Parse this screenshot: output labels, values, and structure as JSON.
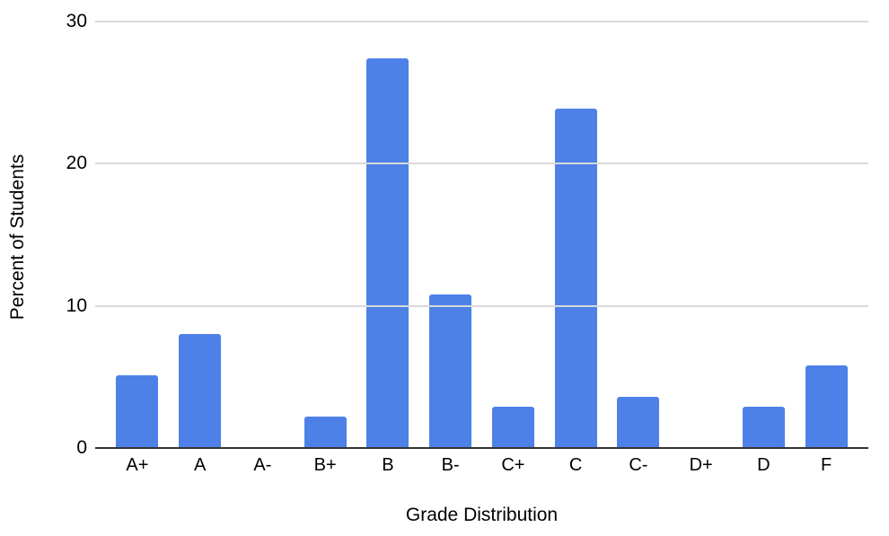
{
  "chart_data": {
    "type": "bar",
    "categories": [
      "A+",
      "A",
      "A-",
      "B+",
      "B",
      "B-",
      "C+",
      "C",
      "C-",
      "D+",
      "D",
      "F"
    ],
    "values": [
      5.1,
      8.0,
      0,
      2.2,
      27.4,
      10.8,
      2.9,
      23.9,
      3.6,
      0,
      2.9,
      5.8
    ],
    "title": "",
    "xlabel": "Grade Distribution",
    "ylabel": "Percent of Students",
    "ylim": [
      0,
      30
    ],
    "yticks": [
      0,
      10,
      20,
      30
    ],
    "grid": true,
    "legend": "none",
    "colors": {
      "bar": "#4d81e8",
      "grid": "#d9d9d9",
      "axis": "#333333",
      "text": "#000000",
      "background": "#ffffff"
    }
  }
}
